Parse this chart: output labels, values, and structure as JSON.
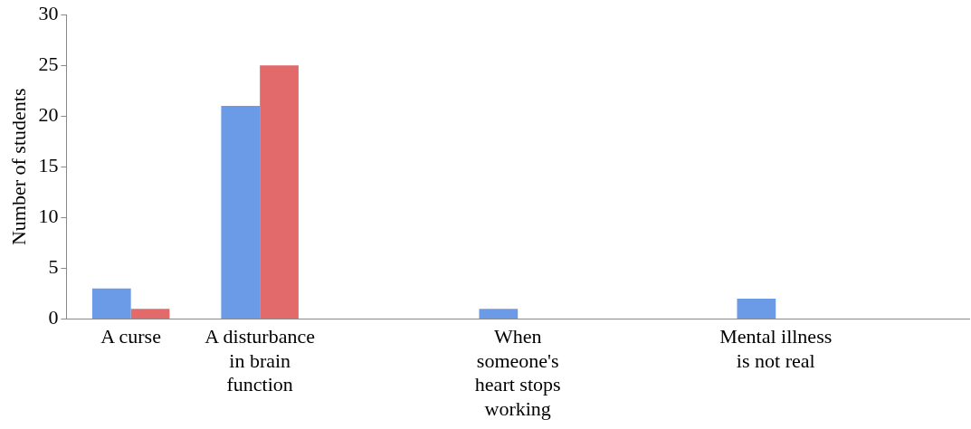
{
  "chart_data": {
    "type": "bar",
    "ylabel": "Number of students",
    "categories": [
      "A curse",
      "A disturbance in brain function",
      null,
      "When someone's heart stops working",
      null,
      "Mental illness is not real",
      null
    ],
    "series": [
      {
        "color": "#6b9be6",
        "values": [
          3,
          21,
          0,
          1,
          0,
          2,
          0
        ]
      },
      {
        "color": "#e26a6a",
        "values": [
          1,
          25,
          0,
          0,
          0,
          0,
          0
        ]
      }
    ],
    "ylim": [
      0,
      30
    ],
    "yticks": [
      0,
      5,
      10,
      15,
      20,
      25,
      30
    ],
    "grid": false,
    "legend": false
  }
}
